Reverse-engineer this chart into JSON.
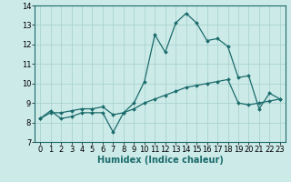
{
  "title": "",
  "xlabel": "Humidex (Indice chaleur)",
  "ylabel": "",
  "bg_color": "#cceae8",
  "grid_color": "#aad4d0",
  "line_color": "#1a6b6b",
  "x_values": [
    0,
    1,
    2,
    3,
    4,
    5,
    6,
    7,
    8,
    9,
    10,
    11,
    12,
    13,
    14,
    15,
    16,
    17,
    18,
    19,
    20,
    21,
    22,
    23
  ],
  "line1_y": [
    8.2,
    8.6,
    8.2,
    8.3,
    8.5,
    8.5,
    8.5,
    7.5,
    8.5,
    9.0,
    10.1,
    12.5,
    11.6,
    13.1,
    13.6,
    13.1,
    12.2,
    12.3,
    11.9,
    10.3,
    10.4,
    8.7,
    9.5,
    9.2
  ],
  "line2_y": [
    8.2,
    8.5,
    8.5,
    8.6,
    8.7,
    8.7,
    8.8,
    8.4,
    8.5,
    8.7,
    9.0,
    9.2,
    9.4,
    9.6,
    9.8,
    9.9,
    10.0,
    10.1,
    10.2,
    9.0,
    8.9,
    9.0,
    9.1,
    9.2
  ],
  "ylim": [
    7,
    14
  ],
  "xlim": [
    -0.5,
    23.5
  ],
  "yticks": [
    7,
    8,
    9,
    10,
    11,
    12,
    13,
    14
  ],
  "xticks": [
    0,
    1,
    2,
    3,
    4,
    5,
    6,
    7,
    8,
    9,
    10,
    11,
    12,
    13,
    14,
    15,
    16,
    17,
    18,
    19,
    20,
    21,
    22,
    23
  ],
  "tick_fontsize": 6,
  "xlabel_fontsize": 7,
  "marker": "D",
  "markersize": 2.0,
  "linewidth": 0.9
}
